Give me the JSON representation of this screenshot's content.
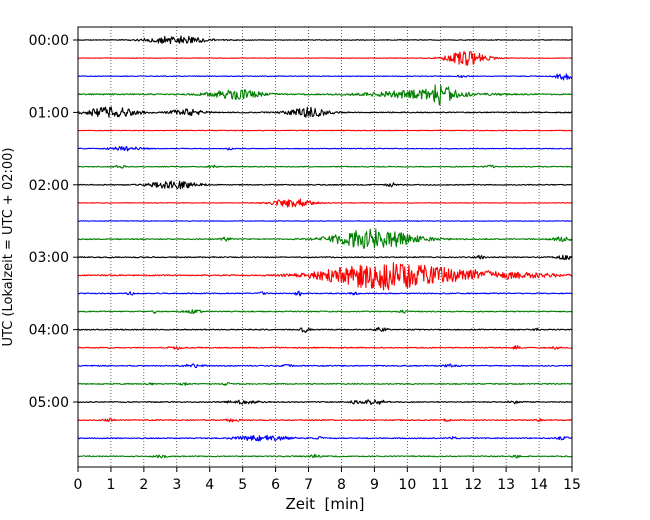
{
  "chart_data": {
    "type": "line",
    "title": "",
    "xlabel": "Zeit  [min]",
    "ylabel": "UTC (Lokalzeit = UTC + 02:00)",
    "xlim": [
      0,
      15
    ],
    "x_ticks": [
      0,
      1,
      2,
      3,
      4,
      5,
      6,
      7,
      8,
      9,
      10,
      11,
      12,
      13,
      14,
      15
    ],
    "y_tick_labels": [
      "00:00",
      "01:00",
      "02:00",
      "03:00",
      "04:00",
      "05:00"
    ],
    "y_tick_rows": [
      0,
      4,
      8,
      12,
      16,
      20
    ],
    "grid": "vertical-dotted",
    "colors": [
      "#000000",
      "#ff0000",
      "#0000ff",
      "#008000"
    ],
    "traces": [
      {
        "row": 0,
        "amp": 0.35,
        "events": [
          [
            3.0,
            4.0,
            0.9
          ]
        ]
      },
      {
        "row": 1,
        "amp": 0.3,
        "events": [
          [
            11.8,
            7.0,
            0.6
          ]
        ]
      },
      {
        "row": 2,
        "amp": 0.35,
        "events": [
          [
            11.7,
            1.2,
            0.15
          ],
          [
            14.8,
            3.5,
            0.3
          ]
        ]
      },
      {
        "row": 3,
        "amp": 0.6,
        "events": [
          [
            4.8,
            4.5,
            0.8
          ],
          [
            11.0,
            7.0,
            0.35
          ],
          [
            10.4,
            4.0,
            1.5
          ]
        ]
      },
      {
        "row": 4,
        "amp": 0.5,
        "events": [
          [
            1.0,
            5.0,
            0.8
          ],
          [
            3.3,
            3.2,
            0.5
          ],
          [
            7.0,
            5.0,
            0.6
          ]
        ]
      },
      {
        "row": 5,
        "amp": 0.3,
        "events": []
      },
      {
        "row": 6,
        "amp": 0.35,
        "events": [
          [
            1.5,
            2.0,
            0.5
          ],
          [
            4.6,
            1.2,
            0.1
          ]
        ]
      },
      {
        "row": 7,
        "amp": 0.4,
        "events": [
          [
            1.3,
            1.3,
            0.2
          ],
          [
            4.1,
            1.3,
            0.15
          ],
          [
            12.5,
            1.3,
            0.15
          ]
        ]
      },
      {
        "row": 8,
        "amp": 0.45,
        "events": [
          [
            2.9,
            4.0,
            0.7
          ],
          [
            9.5,
            2.0,
            0.15
          ]
        ]
      },
      {
        "row": 9,
        "amp": 0.3,
        "events": [
          [
            6.5,
            4.5,
            0.6
          ]
        ]
      },
      {
        "row": 10,
        "amp": 0.3,
        "events": []
      },
      {
        "row": 11,
        "amp": 0.5,
        "events": [
          [
            4.5,
            1.8,
            0.15
          ],
          [
            9.0,
            10.0,
            1.2
          ],
          [
            14.7,
            2.0,
            0.3
          ]
        ]
      },
      {
        "row": 12,
        "amp": 0.5,
        "events": [
          [
            12.2,
            1.5,
            0.15
          ],
          [
            14.8,
            2.0,
            0.3
          ]
        ]
      },
      {
        "row": 13,
        "amp": 0.6,
        "events": [
          [
            9.1,
            12.0,
            1.6
          ],
          [
            11.5,
            5.0,
            2.5
          ]
        ]
      },
      {
        "row": 14,
        "amp": 0.5,
        "events": [
          [
            1.6,
            1.5,
            0.1
          ],
          [
            5.6,
            1.5,
            0.1
          ],
          [
            6.7,
            2.5,
            0.1
          ],
          [
            8.4,
            1.5,
            0.1
          ]
        ]
      },
      {
        "row": 15,
        "amp": 0.5,
        "events": [
          [
            2.3,
            1.5,
            0.1
          ],
          [
            3.5,
            1.5,
            0.3
          ],
          [
            9.9,
            2.0,
            0.1
          ]
        ]
      },
      {
        "row": 16,
        "amp": 0.5,
        "events": [
          [
            6.9,
            2.5,
            0.15
          ],
          [
            9.2,
            2.0,
            0.2
          ],
          [
            13.9,
            1.5,
            0.1
          ]
        ]
      },
      {
        "row": 17,
        "amp": 0.5,
        "events": [
          [
            3.0,
            1.5,
            0.2
          ],
          [
            13.3,
            2.0,
            0.1
          ],
          [
            14.5,
            1.5,
            0.1
          ]
        ]
      },
      {
        "row": 18,
        "amp": 0.5,
        "events": [
          [
            3.5,
            1.5,
            0.3
          ],
          [
            6.4,
            1.5,
            0.2
          ],
          [
            11.3,
            1.5,
            0.2
          ]
        ]
      },
      {
        "row": 19,
        "amp": 0.5,
        "events": [
          [
            2.2,
            1.5,
            0.1
          ],
          [
            3.2,
            1.5,
            0.1
          ],
          [
            4.5,
            1.5,
            0.1
          ]
        ]
      },
      {
        "row": 20,
        "amp": 0.5,
        "events": [
          [
            5.0,
            1.5,
            0.5
          ],
          [
            8.4,
            1.5,
            0.15
          ],
          [
            9.0,
            3.0,
            0.3
          ],
          [
            13.3,
            1.5,
            0.2
          ]
        ]
      },
      {
        "row": 21,
        "amp": 0.5,
        "events": [
          [
            0.9,
            1.5,
            0.15
          ],
          [
            4.7,
            1.5,
            0.2
          ],
          [
            11.2,
            1.5,
            0.1
          ],
          [
            14.0,
            1.5,
            0.1
          ]
        ]
      },
      {
        "row": 22,
        "amp": 0.5,
        "events": [
          [
            5.6,
            2.5,
            0.8
          ],
          [
            7.3,
            1.5,
            0.1
          ],
          [
            11.4,
            1.5,
            0.1
          ],
          [
            14.7,
            1.5,
            0.2
          ]
        ]
      },
      {
        "row": 23,
        "amp": 0.5,
        "events": [
          [
            2.5,
            1.5,
            0.2
          ],
          [
            7.2,
            1.5,
            0.15
          ],
          [
            13.3,
            1.5,
            0.1
          ]
        ]
      }
    ]
  }
}
